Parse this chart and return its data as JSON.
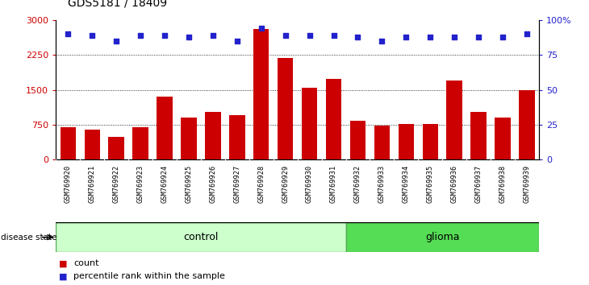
{
  "title": "GDS5181 / 18409",
  "samples": [
    "GSM769920",
    "GSM769921",
    "GSM769922",
    "GSM769923",
    "GSM769924",
    "GSM769925",
    "GSM769926",
    "GSM769927",
    "GSM769928",
    "GSM769929",
    "GSM769930",
    "GSM769931",
    "GSM769932",
    "GSM769933",
    "GSM769934",
    "GSM769935",
    "GSM769936",
    "GSM769937",
    "GSM769938",
    "GSM769939"
  ],
  "counts": [
    700,
    640,
    480,
    700,
    1350,
    900,
    1020,
    950,
    2800,
    2180,
    1540,
    1730,
    840,
    730,
    760,
    760,
    1700,
    1020,
    900,
    1500
  ],
  "percentiles": [
    90,
    89,
    85,
    89,
    89,
    88,
    89,
    85,
    94,
    89,
    89,
    89,
    88,
    85,
    88,
    88,
    88,
    88,
    88,
    90
  ],
  "n_control": 12,
  "bar_color": "#cc0000",
  "dot_color": "#2222cc",
  "control_color": "#ccffcc",
  "glioma_color": "#55dd55",
  "ylim_left": [
    0,
    3000
  ],
  "ylim_right": [
    0,
    100
  ],
  "yticks_left": [
    0,
    750,
    1500,
    2250,
    3000
  ],
  "yticks_right": [
    0,
    25,
    50,
    75,
    100
  ],
  "grid_values": [
    750,
    1500,
    2250
  ],
  "legend_count": "count",
  "legend_percentile": "percentile rank within the sample",
  "disease_state_label": "disease state",
  "control_label": "control",
  "glioma_label": "glioma",
  "bg_xtick": "#d8d8d8"
}
